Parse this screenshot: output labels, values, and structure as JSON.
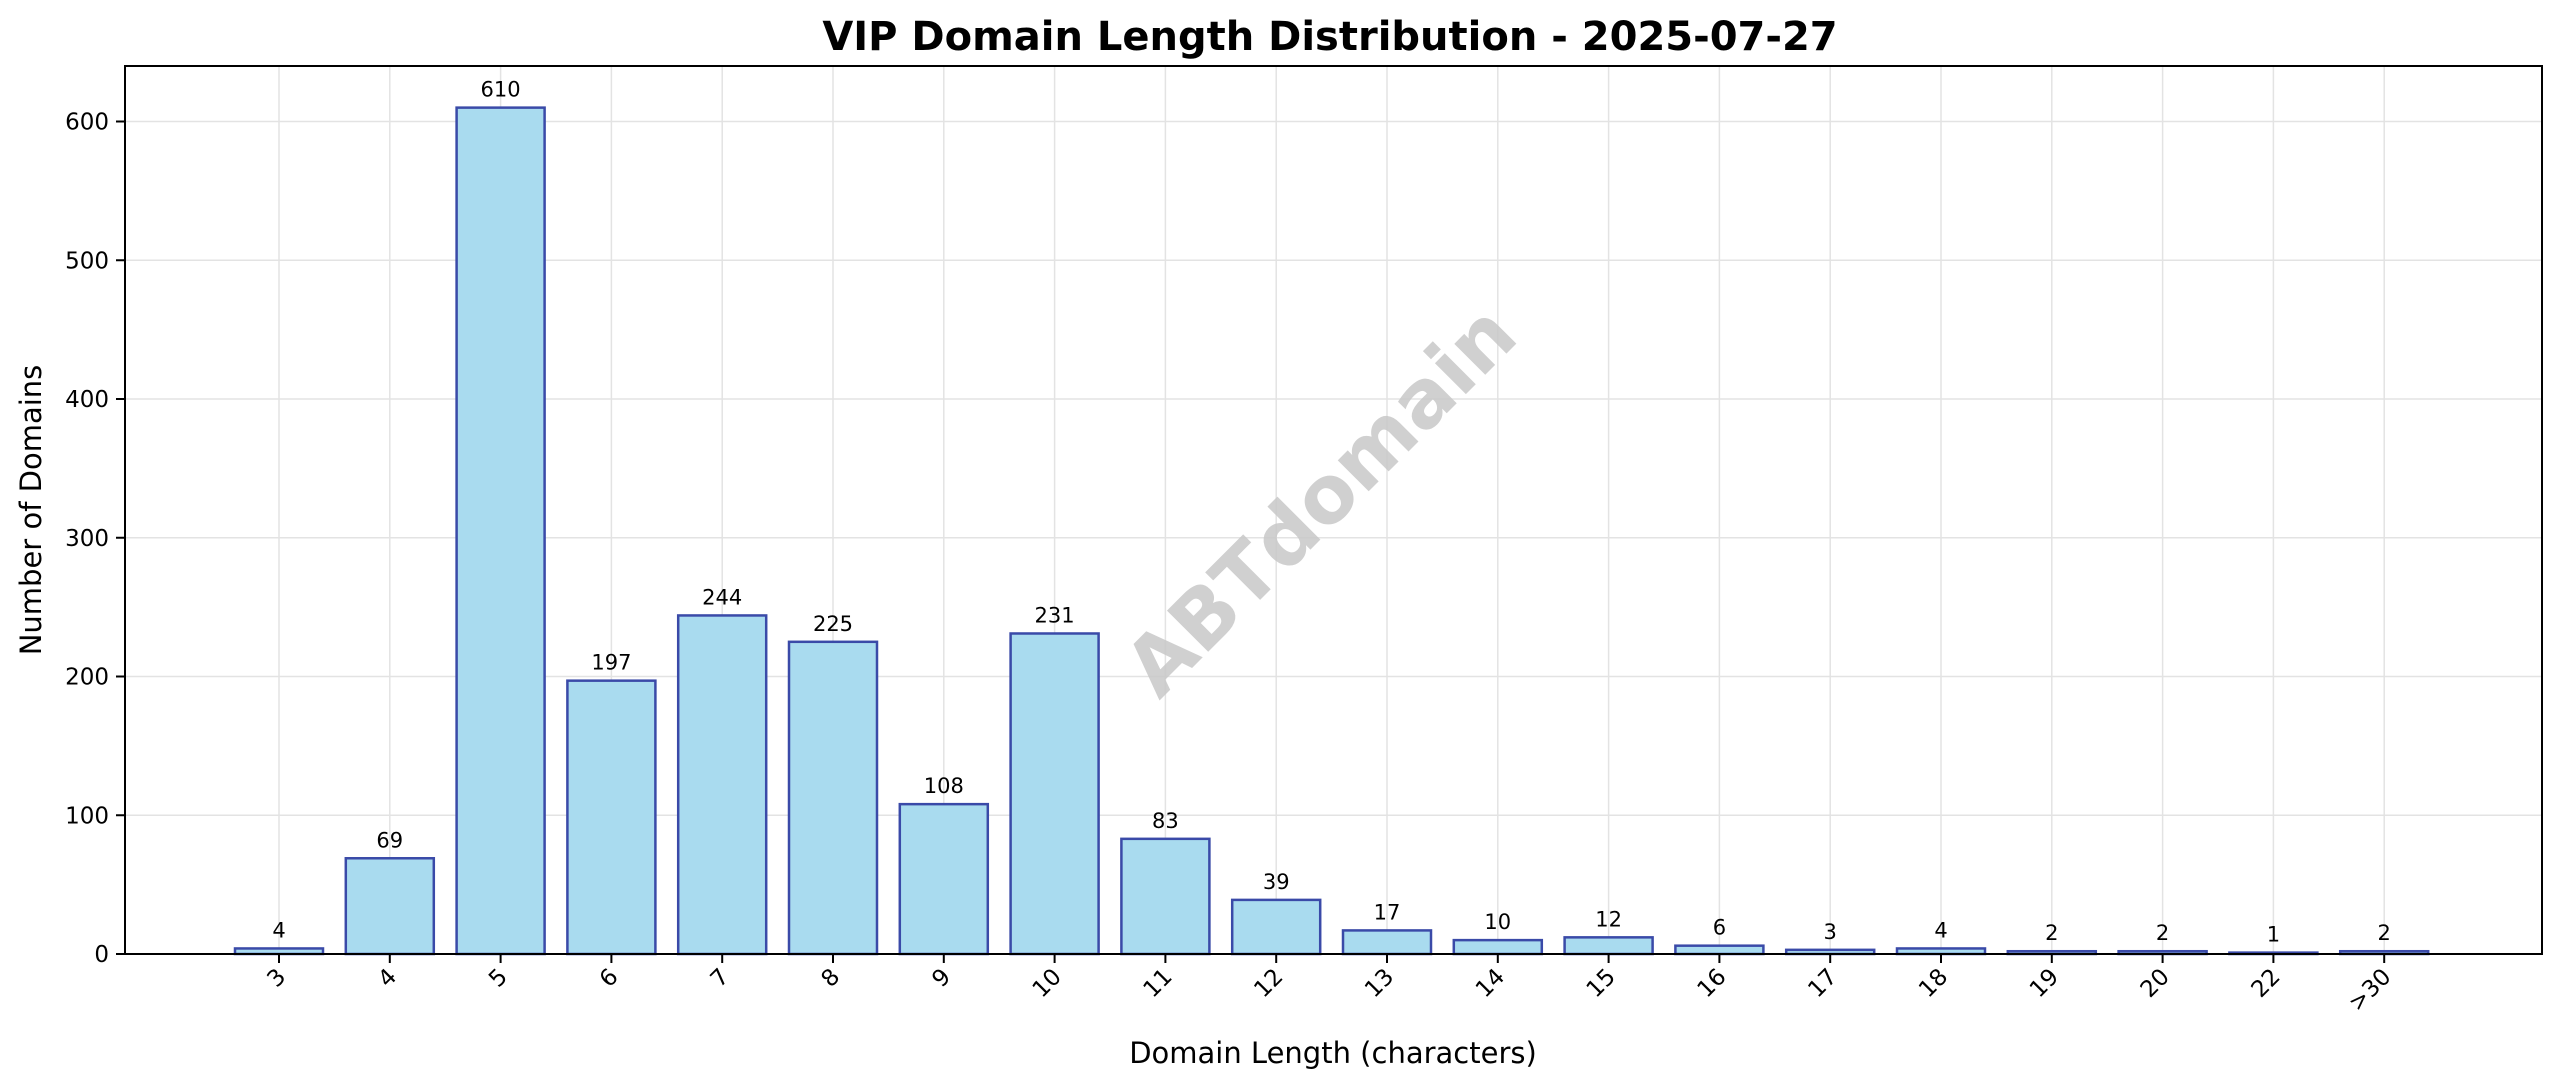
{
  "chart_data": {
    "type": "bar",
    "title": "VIP Domain Length Distribution - 2025-07-27",
    "xlabel": "Domain Length (characters)",
    "ylabel": "Number of Domains",
    "categories": [
      "3",
      "4",
      "5",
      "6",
      "7",
      "8",
      "9",
      "10",
      "11",
      "12",
      "13",
      "14",
      "15",
      "16",
      "17",
      "18",
      "19",
      "20",
      "22",
      ">30"
    ],
    "values": [
      4,
      69,
      610,
      197,
      244,
      225,
      108,
      231,
      83,
      39,
      17,
      10,
      12,
      6,
      3,
      4,
      2,
      2,
      1,
      2
    ],
    "ylim": [
      0,
      640
    ],
    "yticks": [
      0,
      100,
      200,
      300,
      400,
      500,
      600
    ],
    "grid": true,
    "bar_color": "#a9dbef",
    "bar_edge_color": "#3a4aa8",
    "x_tick_rotation": "45 degrees"
  },
  "watermark": "ABTdomain"
}
